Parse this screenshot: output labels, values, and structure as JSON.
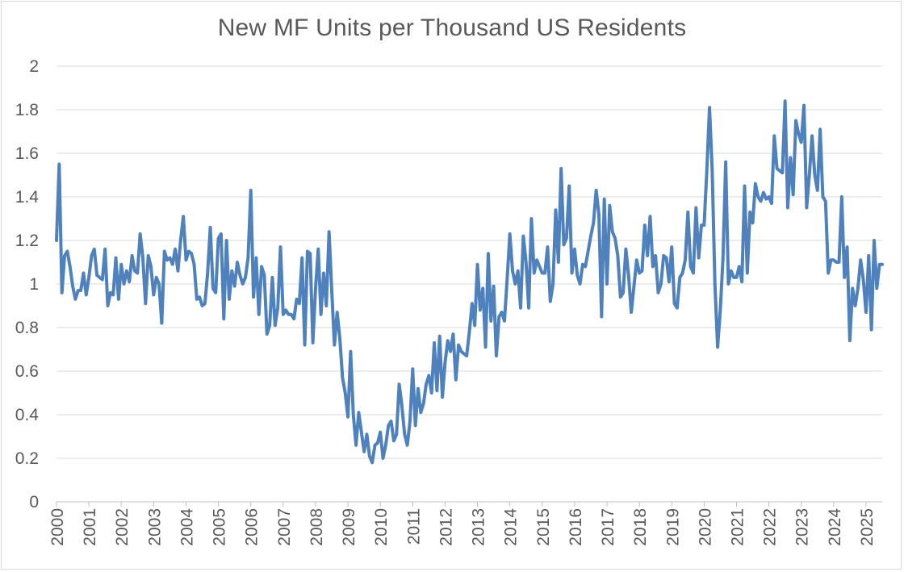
{
  "chart_data": {
    "type": "line",
    "title": "New MF Units per Thousand US Residents",
    "xlabel": "",
    "ylabel": "",
    "ylim": [
      0,
      2
    ],
    "y_ticks": [
      "0",
      "0.2",
      "0.4",
      "0.6",
      "0.8",
      "1",
      "1.2",
      "1.4",
      "1.6",
      "1.8",
      "2"
    ],
    "x_tick_labels": [
      "2000",
      "2001",
      "2002",
      "2003",
      "2004",
      "2005",
      "2006",
      "2007",
      "2008",
      "2009",
      "2010",
      "2011",
      "2012",
      "2013",
      "2014",
      "2015",
      "2016",
      "2017",
      "2018",
      "2019",
      "2020",
      "2021",
      "2022",
      "2023",
      "2024",
      "2025"
    ],
    "grid": "horizontal",
    "series": [
      {
        "color": "#4f81bd",
        "x_start": 2000,
        "x_step": 0.08333,
        "values": [
          1.2,
          1.55,
          0.96,
          1.13,
          1.15,
          1.08,
          0.99,
          0.93,
          0.97,
          0.97,
          1.05,
          0.95,
          1.03,
          1.13,
          1.16,
          1.04,
          1.03,
          1.02,
          1.16,
          0.9,
          0.96,
          0.95,
          1.12,
          0.93,
          1.09,
          1.0,
          1.06,
          1.01,
          1.13,
          1.06,
          1.05,
          1.23,
          1.12,
          0.91,
          1.13,
          1.08,
          0.95,
          1.03,
          1.0,
          0.82,
          1.15,
          1.11,
          1.12,
          1.09,
          1.16,
          1.06,
          1.2,
          1.31,
          1.11,
          1.15,
          1.14,
          1.09,
          0.93,
          0.94,
          0.9,
          0.91,
          1.05,
          1.26,
          0.98,
          0.96,
          1.21,
          1.23,
          0.84,
          1.2,
          0.93,
          1.06,
          0.99,
          1.1,
          1.04,
          1.0,
          1.03,
          1.12,
          1.43,
          0.94,
          1.12,
          0.86,
          1.08,
          1.04,
          0.77,
          0.81,
          1.03,
          0.81,
          0.89,
          1.17,
          0.86,
          0.88,
          0.86,
          0.86,
          0.84,
          0.93,
          0.91,
          1.12,
          0.72,
          1.15,
          1.14,
          0.73,
          0.98,
          1.16,
          0.86,
          1.05,
          0.9,
          1.24,
          0.97,
          0.72,
          0.87,
          0.75,
          0.57,
          0.5,
          0.39,
          0.69,
          0.4,
          0.26,
          0.41,
          0.32,
          0.23,
          0.31,
          0.21,
          0.18,
          0.26,
          0.27,
          0.32,
          0.2,
          0.26,
          0.35,
          0.37,
          0.28,
          0.31,
          0.54,
          0.44,
          0.31,
          0.26,
          0.37,
          0.61,
          0.35,
          0.52,
          0.41,
          0.45,
          0.54,
          0.58,
          0.5,
          0.73,
          0.51,
          0.76,
          0.48,
          0.64,
          0.74,
          0.69,
          0.77,
          0.56,
          0.72,
          0.69,
          0.68,
          0.67,
          0.78,
          0.91,
          0.81,
          1.09,
          0.88,
          0.98,
          0.71,
          1.14,
          0.83,
          0.99,
          0.67,
          0.85,
          0.87,
          0.83,
          1.02,
          1.23,
          1.06,
          1.0,
          1.06,
          0.89,
          1.22,
          1.1,
          0.89,
          1.3,
          1.05,
          1.11,
          1.08,
          1.05,
          1.05,
          1.17,
          0.92,
          1.0,
          1.34,
          1.1,
          1.53,
          1.18,
          1.21,
          1.45,
          1.05,
          1.16,
          1.04,
          1.0,
          1.09,
          1.08,
          1.15,
          1.22,
          1.28,
          1.43,
          1.32,
          0.85,
          1.39,
          1.0,
          1.36,
          1.24,
          1.21,
          1.13,
          0.94,
          0.96,
          1.16,
          1.04,
          0.87,
          0.99,
          1.11,
          1.05,
          1.06,
          1.27,
          1.13,
          1.31,
          1.08,
          1.13,
          0.96,
          1.0,
          1.13,
          1.12,
          1.01,
          1.17,
          0.91,
          0.89,
          1.03,
          1.05,
          1.11,
          1.33,
          1.08,
          1.05,
          1.35,
          1.12,
          1.27,
          1.27,
          1.52,
          1.81,
          1.52,
          1.0,
          0.71,
          0.88,
          1.12,
          1.56,
          1.0,
          1.06,
          1.03,
          1.03,
          1.08,
          1.01,
          1.45,
          1.05,
          1.33,
          1.28,
          1.46,
          1.4,
          1.38,
          1.42,
          1.39,
          1.4,
          1.37,
          1.68,
          1.53,
          1.52,
          1.51,
          1.84,
          1.35,
          1.58,
          1.41,
          1.75,
          1.69,
          1.65,
          1.82,
          1.35,
          1.5,
          1.68,
          1.5,
          1.43,
          1.71,
          1.4,
          1.38,
          1.05,
          1.11,
          1.11,
          1.1,
          1.1,
          1.4,
          1.03,
          1.17,
          0.74,
          0.98,
          0.9,
          0.98,
          1.11,
          1.02,
          0.87,
          1.13,
          0.79,
          1.2,
          0.98,
          1.09,
          1.09
        ]
      }
    ]
  }
}
